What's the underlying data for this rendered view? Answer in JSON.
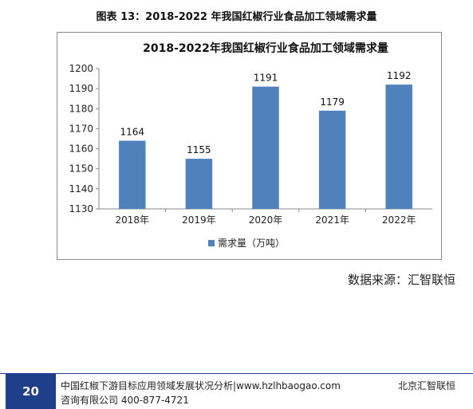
{
  "caption": "图表 13：2018-2022 年我国红椒行业食品加工领域需求量",
  "chart_data": {
    "type": "bar",
    "title": "2018-2022年我国红椒行业食品加工领域需求量",
    "categories": [
      "2018年",
      "2019年",
      "2020年",
      "2021年",
      "2022年"
    ],
    "series": [
      {
        "name": "需求量（万吨）",
        "values": [
          1164,
          1155,
          1191,
          1179,
          1192
        ],
        "color": "#4f81bd"
      }
    ],
    "ylim": [
      1130,
      1200
    ],
    "yticks": [
      1130,
      1140,
      1150,
      1160,
      1170,
      1180,
      1190,
      1200
    ],
    "grid": false,
    "legend": "bottom",
    "data_labels": true
  },
  "source": "数据来源：汇智联恒",
  "footer": {
    "page_number": "20",
    "line1": "中国红椒下游目标应用领域发展状况分析|www.hzlhbaogao.com",
    "line2": "咨询有限公司 400-877-4721",
    "company": "北京汇智联恒"
  }
}
